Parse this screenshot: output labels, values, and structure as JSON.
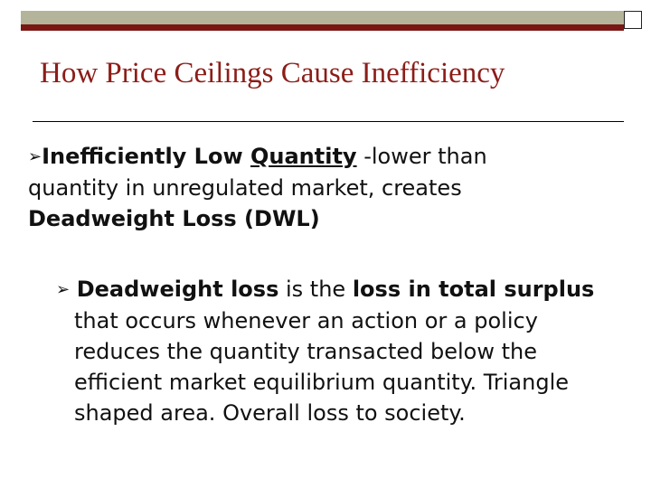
{
  "slide": {
    "title": "How Price Ceilings Cause Inefficiency",
    "bullet_icon": "arrow-bullet-icon",
    "bullet1": {
      "bold_a": "Inefficiently Low ",
      "underlined": "Quantity",
      "text_a": " -lower than quantity in unregulated market, creates ",
      "bold_b": "Deadweight Loss (DWL)"
    },
    "bullet2": {
      "bold_a": "Deadweight loss",
      "text_a": " is the ",
      "bold_b": "loss in total surplus",
      "text_b": " that occurs whenever an action or a policy reduces the quantity transacted below the efficient market equilibrium quantity.  Triangle shaped area.  Overall loss to society."
    }
  },
  "colors": {
    "title": "#8c1d18",
    "top_bar": "#b4b49a",
    "top_bar_stripe": "#7a1714"
  }
}
